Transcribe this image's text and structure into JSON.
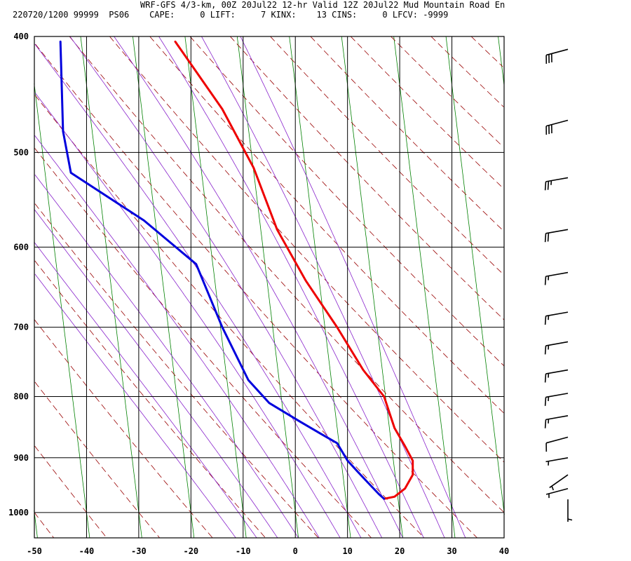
{
  "header": {
    "line1": "WRF-GFS 4/3-km, 00Z 20Jul22 12-hr Valid 12Z 20Jul22 Mud Mountain Road En",
    "line2": "220720/1200 99999  PS06    CAPE:     0 LIFT:     7 KINX:    13 CINS:     0 LFCV: -9999"
  },
  "chart_data": {
    "type": "skew-t log-p sounding",
    "title": "",
    "xlabel": "",
    "ylabel": "",
    "x_ticks": [
      -50,
      -40,
      -30,
      -20,
      -10,
      0,
      10,
      20,
      30,
      40
    ],
    "y_ticks": [
      400,
      500,
      600,
      700,
      800,
      900,
      1000
    ],
    "xlim": [
      -50,
      40
    ],
    "ylim": [
      1050,
      400
    ],
    "y_scale": "log",
    "grid": true,
    "colors": {
      "temperature": "#ee0000",
      "dewpoint": "#0000dd",
      "isotherm": "#008000",
      "dry_adiabat": "#990000",
      "moist_adiabat": "#8822cc",
      "grid": "#000000",
      "wind_barb": "#000000"
    },
    "series": [
      {
        "points": [
          {
            "p": 404,
            "x": -23
          },
          {
            "p": 460,
            "x": -14
          },
          {
            "p": 515,
            "x": -8
          },
          {
            "p": 580,
            "x": -3.5
          },
          {
            "p": 640,
            "x": 2
          },
          {
            "p": 700,
            "x": 8
          },
          {
            "p": 760,
            "x": 13
          },
          {
            "p": 800,
            "x": 17
          },
          {
            "p": 850,
            "x": 19
          },
          {
            "p": 880,
            "x": 21
          },
          {
            "p": 905,
            "x": 22.5
          },
          {
            "p": 930,
            "x": 22.5
          },
          {
            "p": 955,
            "x": 21
          },
          {
            "p": 970,
            "x": 19
          },
          {
            "p": 974,
            "x": 17
          }
        ]
      },
      {
        "points": [
          {
            "p": 404,
            "x": -45
          },
          {
            "p": 480,
            "x": -44.5
          },
          {
            "p": 520,
            "x": -43
          },
          {
            "p": 570,
            "x": -29
          },
          {
            "p": 620,
            "x": -19
          },
          {
            "p": 700,
            "x": -14
          },
          {
            "p": 775,
            "x": -9
          },
          {
            "p": 810,
            "x": -5
          },
          {
            "p": 840,
            "x": 1
          },
          {
            "p": 860,
            "x": 5
          },
          {
            "p": 875,
            "x": 8
          },
          {
            "p": 905,
            "x": 10
          },
          {
            "p": 925,
            "x": 12
          },
          {
            "p": 945,
            "x": 14
          },
          {
            "p": 965,
            "x": 16
          },
          {
            "p": 974,
            "x": 17
          }
        ]
      }
    ],
    "wind_barbs": [
      {
        "p": 410,
        "dir": 255,
        "speed": 30
      },
      {
        "p": 470,
        "dir": 255,
        "speed": 30
      },
      {
        "p": 525,
        "dir": 260,
        "speed": 25
      },
      {
        "p": 580,
        "dir": 260,
        "speed": 20
      },
      {
        "p": 630,
        "dir": 260,
        "speed": 15
      },
      {
        "p": 680,
        "dir": 260,
        "speed": 15
      },
      {
        "p": 720,
        "dir": 260,
        "speed": 15
      },
      {
        "p": 760,
        "dir": 260,
        "speed": 15
      },
      {
        "p": 795,
        "dir": 260,
        "speed": 15
      },
      {
        "p": 830,
        "dir": 260,
        "speed": 15
      },
      {
        "p": 865,
        "dir": 255,
        "speed": 10
      },
      {
        "p": 900,
        "dir": 260,
        "speed": 5
      },
      {
        "p": 930,
        "dir": 235,
        "speed": 5
      },
      {
        "p": 955,
        "dir": 255,
        "speed": 5
      },
      {
        "p": 975,
        "dir": 180,
        "speed": 5
      }
    ]
  }
}
